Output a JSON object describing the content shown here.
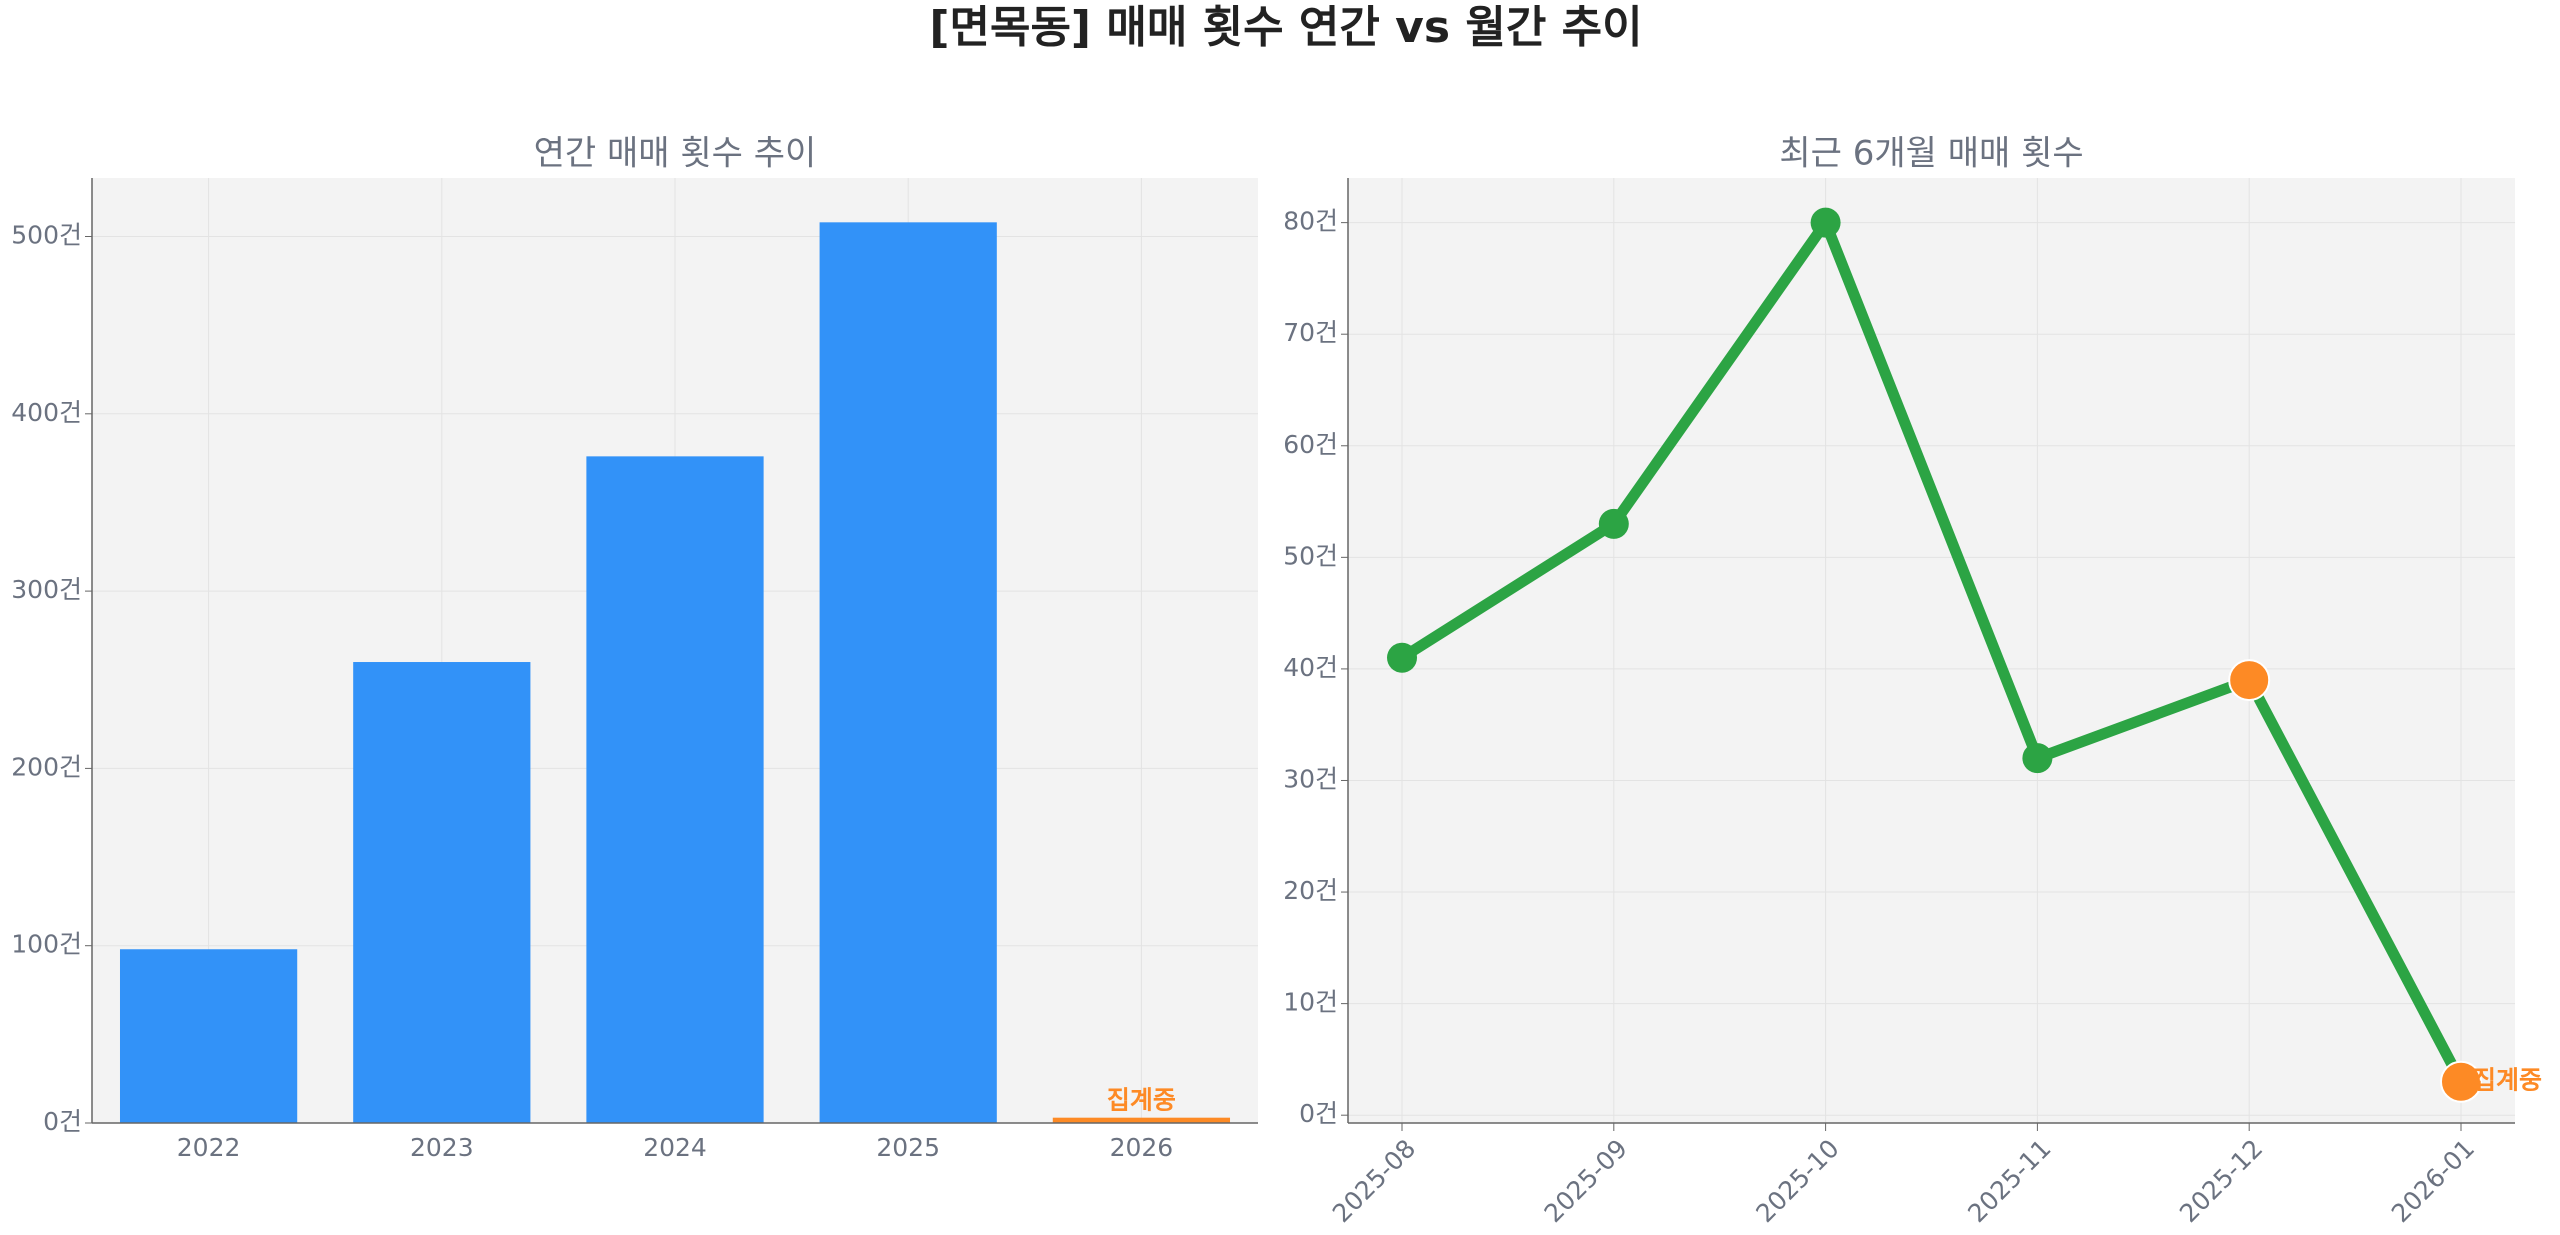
{
  "title": "[면목동] 매매 횟수 연간 vs 월간 추이",
  "chart_data": [
    {
      "type": "bar",
      "title": "연간 매매 횟수 추이",
      "categories": [
        "2022",
        "2023",
        "2024",
        "2025",
        "2026"
      ],
      "values": [
        98,
        260,
        376,
        508,
        3
      ],
      "colors": [
        "#3292f8",
        "#3292f8",
        "#3292f8",
        "#3292f8",
        "#fd8a25"
      ],
      "annotations": [
        {
          "text": "집계중",
          "category": "2026",
          "color": "#fd8a25"
        }
      ],
      "ylim": [
        0,
        533
      ],
      "yticks": [
        {
          "value": 0,
          "label": "0건"
        },
        {
          "value": 100,
          "label": "100건"
        },
        {
          "value": 200,
          "label": "200건"
        },
        {
          "value": 300,
          "label": "300건"
        },
        {
          "value": 400,
          "label": "400건"
        },
        {
          "value": 500,
          "label": "500건"
        }
      ],
      "grid": true
    },
    {
      "type": "line",
      "title": "최근 6개월 매매 횟수",
      "categories": [
        "2025-08",
        "2025-09",
        "2025-10",
        "2025-11",
        "2025-12",
        "2026-01"
      ],
      "values": [
        41,
        53,
        80,
        32,
        39,
        3
      ],
      "color": "#2ca444",
      "marker_colors": [
        "#2ca444",
        "#2ca444",
        "#2ca444",
        "#2ca444",
        "#fd8a25",
        "#fd8a25"
      ],
      "annotations": [
        {
          "text": "집계중",
          "category": "2026-01",
          "color": "#fd8a25"
        }
      ],
      "ylim": [
        -0.7,
        84
      ],
      "yticks": [
        {
          "value": 0,
          "label": "0건"
        },
        {
          "value": 10,
          "label": "10건"
        },
        {
          "value": 20,
          "label": "20건"
        },
        {
          "value": 30,
          "label": "30건"
        },
        {
          "value": 40,
          "label": "40건"
        },
        {
          "value": 50,
          "label": "50건"
        },
        {
          "value": 60,
          "label": "60건"
        },
        {
          "value": 70,
          "label": "70건"
        },
        {
          "value": 80,
          "label": "80건"
        }
      ],
      "grid": true
    }
  ]
}
